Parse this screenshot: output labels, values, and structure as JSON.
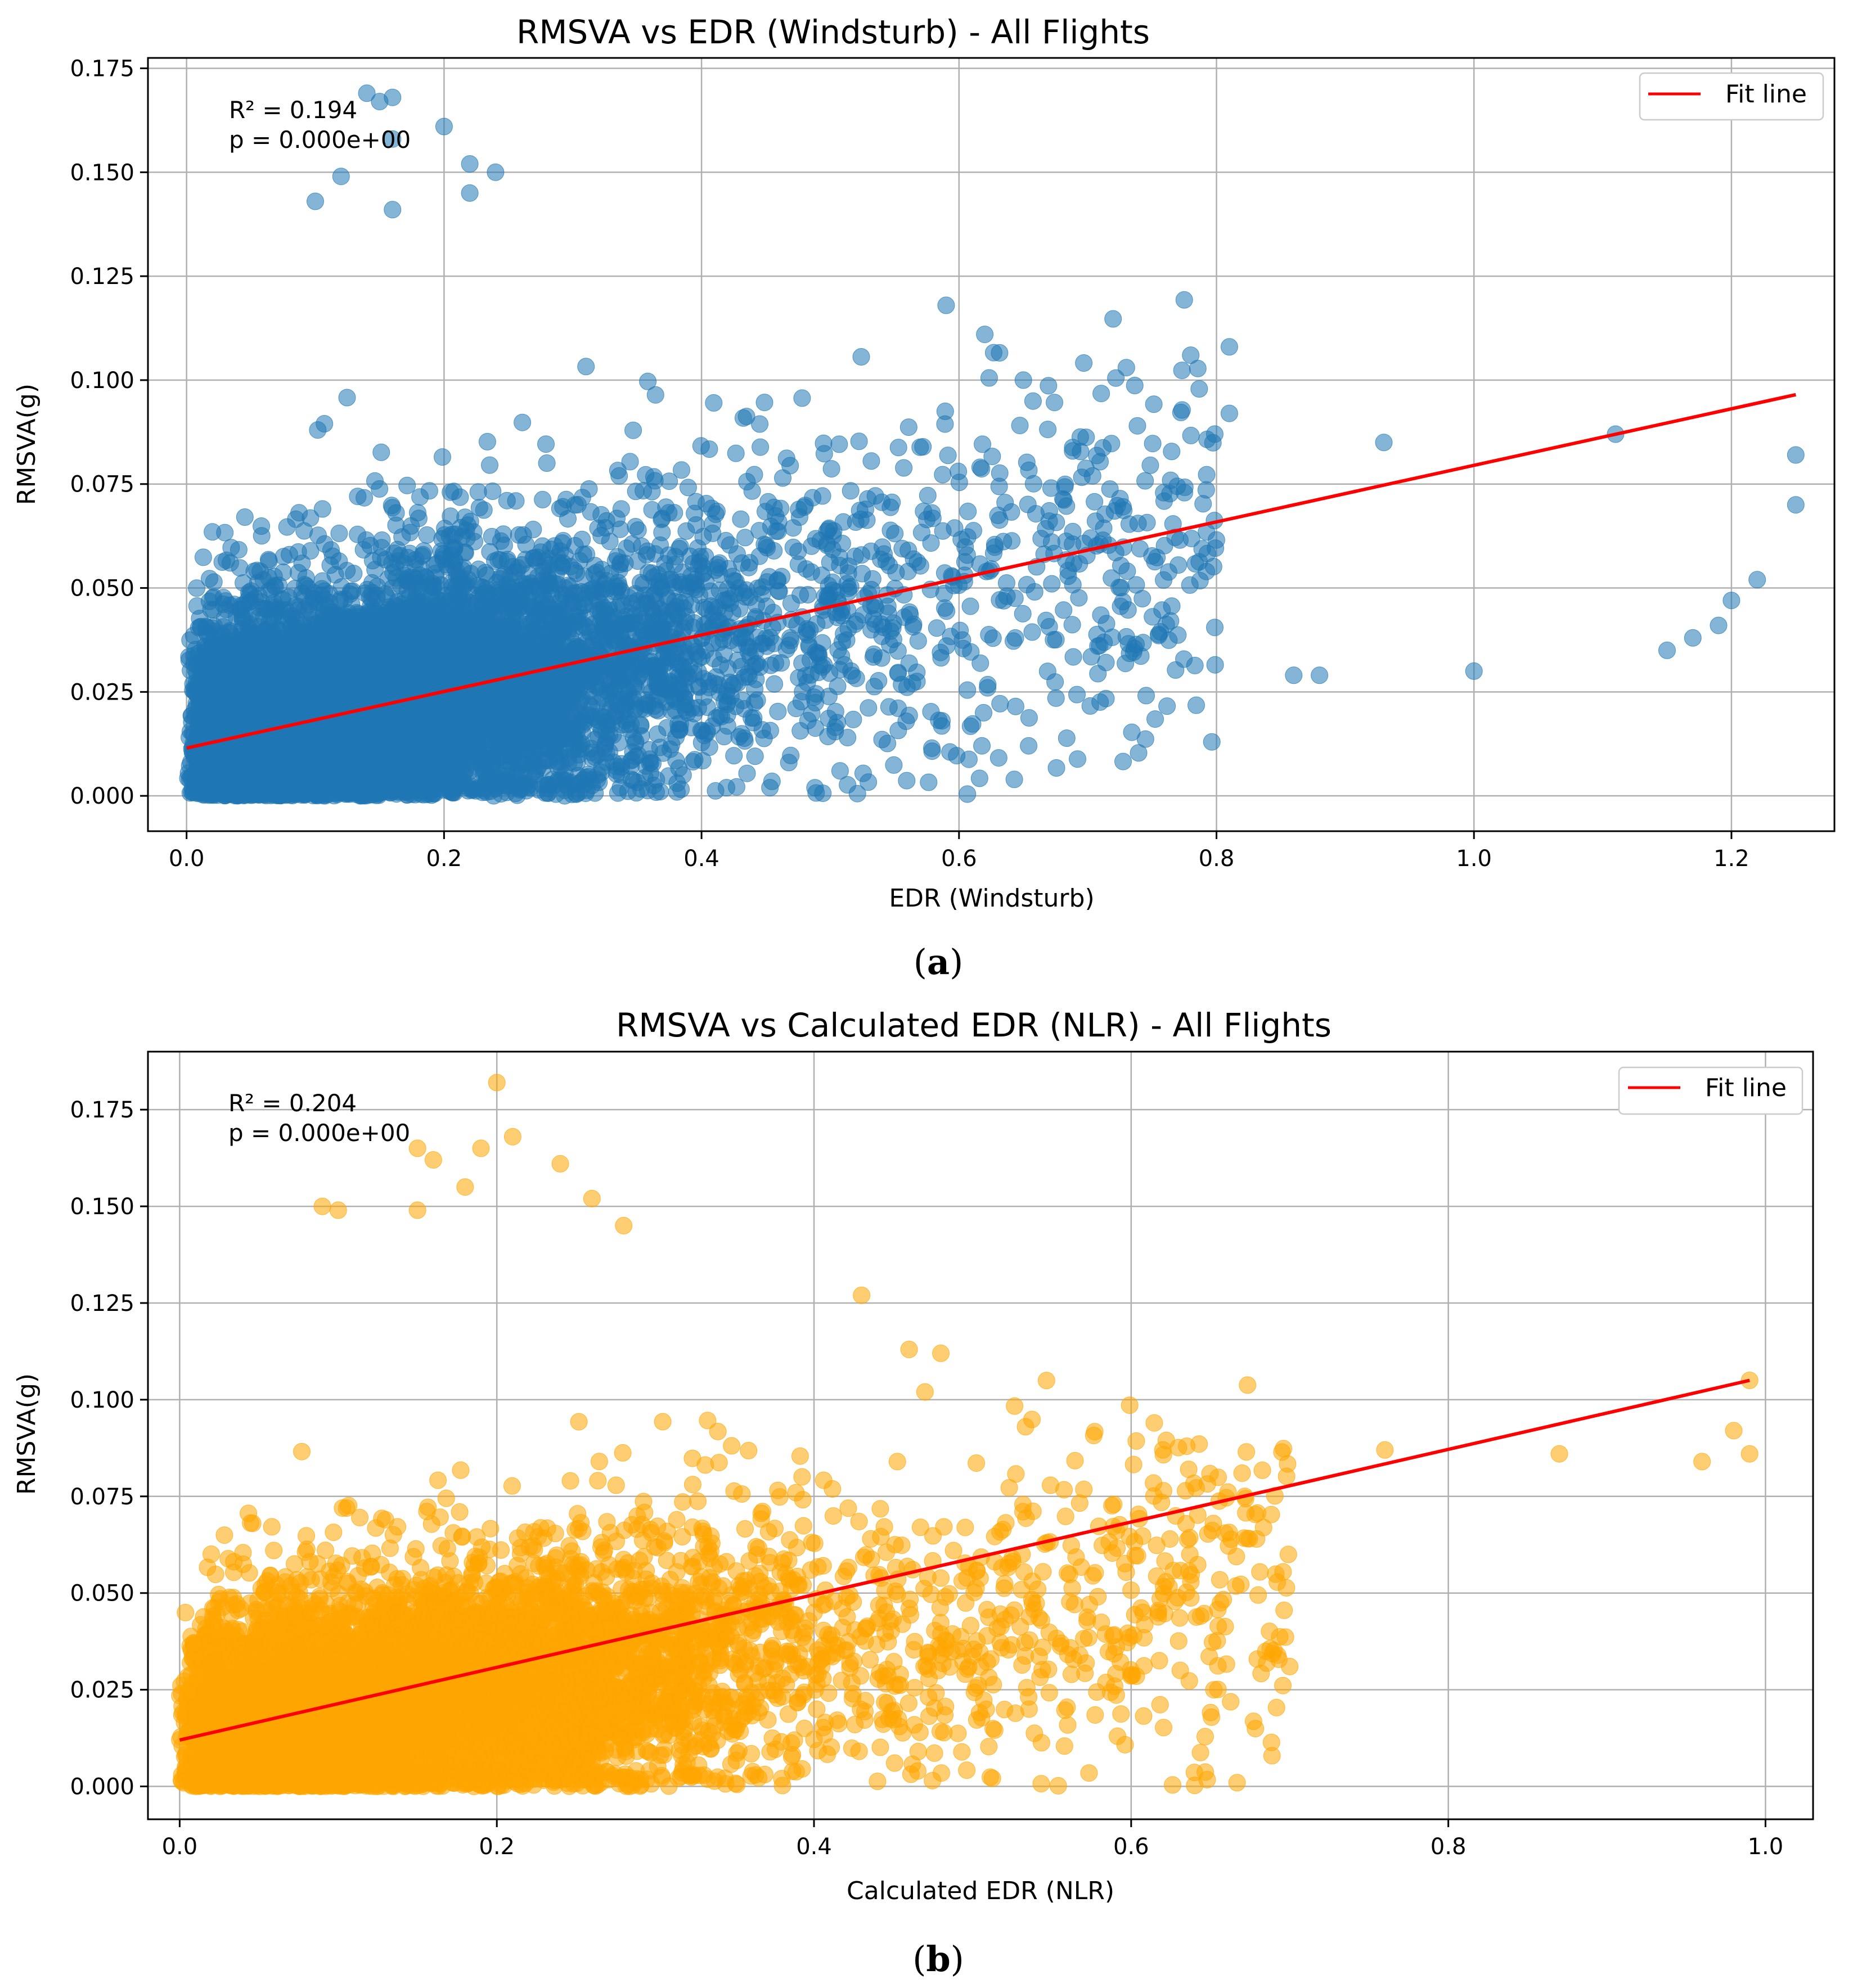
{
  "chart_data": [
    {
      "type": "scatter",
      "title": "RMSVA vs EDR (Windsturb) - All Flights",
      "xlabel": "EDR (Windsturb)",
      "ylabel": "RMSVA(g)",
      "xlim": [
        -0.03,
        1.28
      ],
      "ylim": [
        -0.0085,
        0.1775
      ],
      "xticks": [
        "0.0",
        "0.2",
        "0.4",
        "0.6",
        "0.8",
        "1.0",
        "1.2"
      ],
      "yticks": [
        "0.000",
        "0.025",
        "0.050",
        "0.075",
        "0.100",
        "0.125",
        "0.150",
        "0.175"
      ],
      "grid": true,
      "legend": {
        "position": "top-right",
        "entries": [
          "Fit line"
        ]
      },
      "annotation": [
        "R² = 0.194",
        "p = 0.000e+00"
      ],
      "caption_letter": "a",
      "marker_color": "#1f77b4",
      "fit_color": "#ff0000",
      "fit_line": {
        "x": [
          0.0,
          1.25
        ],
        "y": [
          0.0115,
          0.0965
        ]
      },
      "cloud": {
        "x_max": 0.8,
        "n": 9000
      },
      "outliers": [
        [
          0.86,
          0.029
        ],
        [
          0.88,
          0.029
        ],
        [
          0.93,
          0.085
        ],
        [
          1.0,
          0.03
        ],
        [
          1.11,
          0.087
        ],
        [
          1.15,
          0.035
        ],
        [
          1.17,
          0.038
        ],
        [
          1.19,
          0.041
        ],
        [
          1.2,
          0.047
        ],
        [
          1.22,
          0.052
        ],
        [
          1.25,
          0.082
        ],
        [
          1.25,
          0.07
        ],
        [
          0.81,
          0.108
        ],
        [
          0.81,
          0.092
        ],
        [
          0.78,
          0.106
        ],
        [
          0.73,
          0.103
        ],
        [
          0.62,
          0.111
        ],
        [
          0.59,
          0.118
        ],
        [
          0.65,
          0.1
        ],
        [
          0.14,
          0.169
        ],
        [
          0.15,
          0.167
        ],
        [
          0.16,
          0.168
        ],
        [
          0.2,
          0.161
        ],
        [
          0.16,
          0.158
        ],
        [
          0.22,
          0.152
        ],
        [
          0.24,
          0.15
        ],
        [
          0.12,
          0.149
        ],
        [
          0.1,
          0.143
        ],
        [
          0.22,
          0.145
        ],
        [
          0.16,
          0.141
        ]
      ]
    },
    {
      "type": "scatter",
      "title": "RMSVA vs Calculated EDR (NLR) - All Flights",
      "xlabel": "Calculated EDR (NLR)",
      "ylabel": "RMSVA(g)",
      "xlim": [
        -0.02,
        1.03
      ],
      "ylim": [
        -0.0085,
        0.19
      ],
      "xticks": [
        "0.0",
        "0.2",
        "0.4",
        "0.6",
        "0.8",
        "1.0"
      ],
      "yticks": [
        "0.000",
        "0.025",
        "0.050",
        "0.075",
        "0.100",
        "0.125",
        "0.150",
        "0.175"
      ],
      "grid": true,
      "legend": {
        "position": "top-right",
        "entries": [
          "Fit line"
        ]
      },
      "annotation": [
        "R² = 0.204",
        "p = 0.000e+00"
      ],
      "caption_letter": "b",
      "marker_color": "#ffa500",
      "fit_color": "#ff0000",
      "fit_line": {
        "x": [
          0.0,
          0.99
        ],
        "y": [
          0.012,
          0.105
        ]
      },
      "cloud": {
        "x_max": 0.7,
        "n": 9000
      },
      "outliers": [
        [
          0.76,
          0.087
        ],
        [
          0.87,
          0.086
        ],
        [
          0.96,
          0.084
        ],
        [
          0.98,
          0.092
        ],
        [
          0.99,
          0.105
        ],
        [
          0.99,
          0.086
        ],
        [
          0.2,
          0.182
        ],
        [
          0.21,
          0.168
        ],
        [
          0.19,
          0.165
        ],
        [
          0.15,
          0.165
        ],
        [
          0.16,
          0.162
        ],
        [
          0.24,
          0.161
        ],
        [
          0.18,
          0.155
        ],
        [
          0.15,
          0.149
        ],
        [
          0.09,
          0.15
        ],
        [
          0.1,
          0.149
        ],
        [
          0.26,
          0.152
        ],
        [
          0.28,
          0.145
        ],
        [
          0.43,
          0.127
        ],
        [
          0.46,
          0.113
        ],
        [
          0.48,
          0.112
        ],
        [
          0.47,
          0.102
        ],
        [
          0.62,
          0.087
        ],
        [
          0.67,
          0.081
        ],
        [
          0.7,
          0.031
        ]
      ]
    }
  ]
}
